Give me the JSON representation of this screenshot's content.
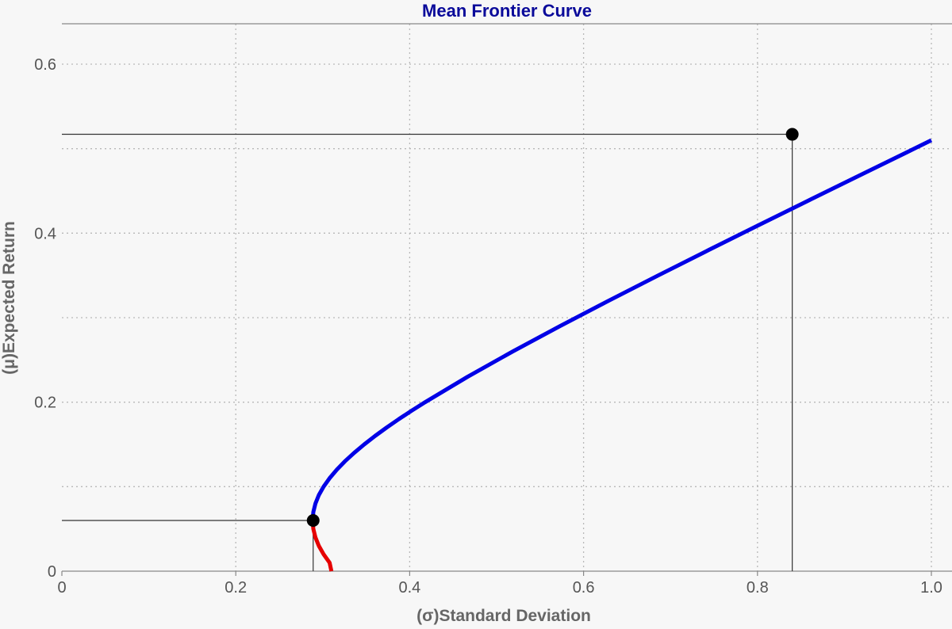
{
  "chart_data": {
    "type": "line",
    "title": "Mean Frontier Curve",
    "xlabel": "(σ)Standard Deviation",
    "ylabel": "(μ)Expected Return",
    "xlim": [
      0,
      1.0
    ],
    "ylim": [
      0,
      0.65
    ],
    "x_ticks": [
      0,
      0.2,
      0.4,
      0.6,
      0.8,
      1.0
    ],
    "x_tick_labels": [
      "0",
      "0.2",
      "0.4",
      "0.6",
      "0.8",
      "1.0"
    ],
    "y_ticks": [
      0,
      0.2,
      0.4,
      0.6
    ],
    "y_tick_labels": [
      "0",
      "0.2",
      "0.4",
      "0.6"
    ],
    "y_minor_grid": [
      0.1,
      0.3,
      0.5
    ],
    "grid": true,
    "series": [
      {
        "color": "#0000e6",
        "points": [
          [
            0.2884,
            0.06
          ],
          [
            0.2892,
            0.07
          ],
          [
            0.2916,
            0.08
          ],
          [
            0.2955,
            0.09
          ],
          [
            0.301,
            0.1
          ],
          [
            0.3079,
            0.11
          ],
          [
            0.3161,
            0.12
          ],
          [
            0.3255,
            0.13
          ],
          [
            0.3361,
            0.14
          ],
          [
            0.3477,
            0.15
          ],
          [
            0.3602,
            0.16
          ],
          [
            0.3735,
            0.17
          ],
          [
            0.3876,
            0.18
          ],
          [
            0.4024,
            0.19
          ],
          [
            0.4178,
            0.2
          ],
          [
            0.4665,
            0.23
          ],
          [
            0.5185,
            0.26
          ],
          [
            0.5728,
            0.29
          ],
          [
            0.6287,
            0.32
          ],
          [
            0.6858,
            0.35
          ],
          [
            0.7438,
            0.38
          ],
          [
            0.8024,
            0.41
          ],
          [
            0.8614,
            0.44
          ],
          [
            0.9208,
            0.47
          ],
          [
            0.9803,
            0.5
          ],
          [
            1.0,
            0.51
          ]
        ]
      },
      {
        "color": "#e60000",
        "points": [
          [
            0.2884,
            0.06
          ],
          [
            0.2892,
            0.05
          ],
          [
            0.2916,
            0.04
          ],
          [
            0.2955,
            0.03
          ],
          [
            0.301,
            0.02
          ],
          [
            0.3079,
            0.01
          ],
          [
            0.31,
            0.0
          ]
        ]
      }
    ],
    "highlighted_points": [
      {
        "x": 0.289,
        "y": 0.06
      },
      {
        "x": 0.84,
        "y": 0.517
      }
    ]
  }
}
